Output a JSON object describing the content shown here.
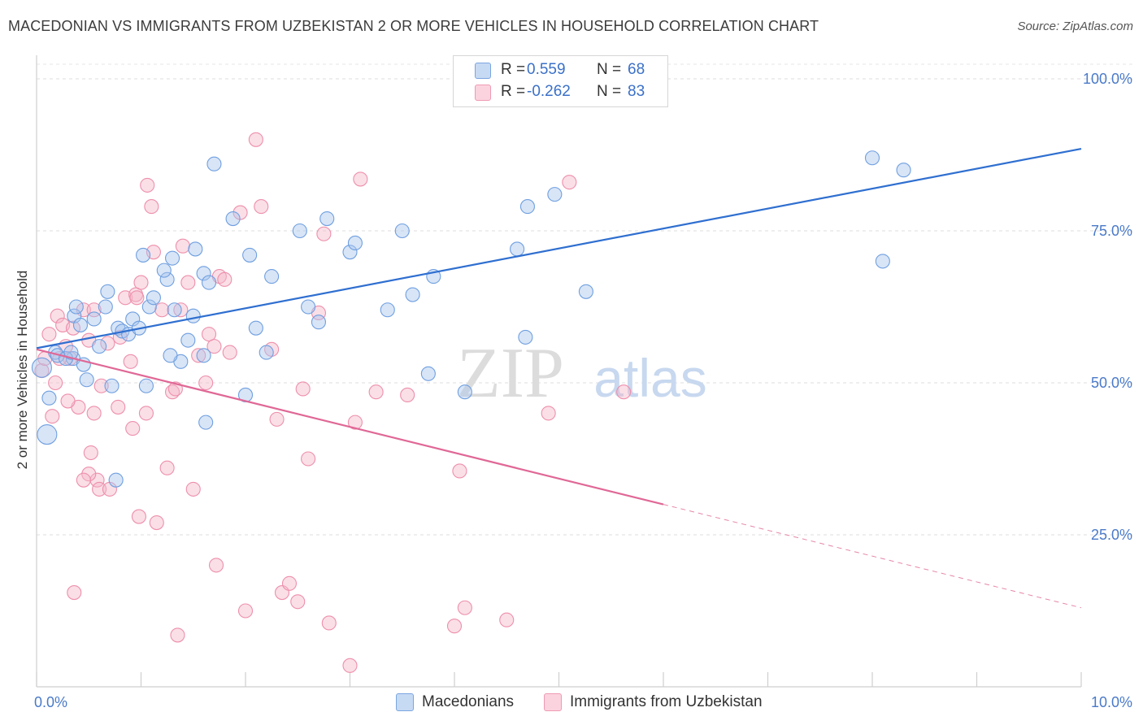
{
  "header": {
    "title": "MACEDONIAN VS IMMIGRANTS FROM UZBEKISTAN 2 OR MORE VEHICLES IN HOUSEHOLD CORRELATION CHART",
    "source": "Source: ZipAtlas.com"
  },
  "watermark": {
    "zip": "ZIP",
    "atlas": "atlas"
  },
  "legend": {
    "rows": [
      {
        "r_label": "R =",
        "r_value": "0.559",
        "n_label": "N =",
        "n_value": "68",
        "color": "#a9c6ee"
      },
      {
        "r_label": "R =",
        "r_value": "-0.262",
        "n_label": "N =",
        "n_value": "83",
        "color": "#f5b8c9"
      }
    ]
  },
  "bottom_legend": {
    "items": [
      {
        "label": "Macedonians",
        "color": "#a9c6ee"
      },
      {
        "label": "Immigrants from Uzbekistan",
        "color": "#f5b8c9"
      }
    ]
  },
  "chart_data": {
    "type": "scatter",
    "title": "MACEDONIAN VS IMMIGRANTS FROM UZBEKISTAN 2 OR MORE VEHICLES IN HOUSEHOLD CORRELATION CHART",
    "xlabel": "",
    "ylabel": "2 or more Vehicles in Household",
    "xlim": [
      0,
      10
    ],
    "ylim": [
      0,
      105
    ],
    "x_tick_labels": [
      {
        "value": 0,
        "label": "0.0%"
      },
      {
        "value": 10,
        "label": "10.0%"
      }
    ],
    "y_tick_labels": [
      {
        "value": 25,
        "label": "25.0%"
      },
      {
        "value": 50,
        "label": "50.0%"
      },
      {
        "value": 75,
        "label": "75.0%"
      },
      {
        "value": 100,
        "label": "100.0%"
      }
    ],
    "grid": true,
    "colors": {
      "macedonians": "#6f9fe0",
      "uzbekistan": "#ee8fab",
      "blue_line": "#2f6fd0",
      "pink_line": "#e06896"
    },
    "series": [
      {
        "name": "Macedonians",
        "color": "#a9c6ee",
        "points": [
          [
            0.05,
            52.5
          ],
          [
            0.1,
            41.5
          ],
          [
            0.12,
            47.5
          ],
          [
            0.18,
            55
          ],
          [
            0.2,
            54.5
          ],
          [
            0.35,
            54
          ],
          [
            0.28,
            54
          ],
          [
            0.33,
            55
          ],
          [
            0.45,
            53
          ],
          [
            0.48,
            50.5
          ],
          [
            0.36,
            61
          ],
          [
            0.42,
            59.5
          ],
          [
            0.38,
            62.5
          ],
          [
            0.55,
            60.5
          ],
          [
            0.6,
            56
          ],
          [
            0.66,
            62.5
          ],
          [
            0.68,
            65
          ],
          [
            0.72,
            49.5
          ],
          [
            0.78,
            59
          ],
          [
            0.82,
            58.5
          ],
          [
            0.88,
            58
          ],
          [
            0.92,
            60.5
          ],
          [
            0.98,
            59
          ],
          [
            0.76,
            34
          ],
          [
            1.05,
            49.5
          ],
          [
            1.08,
            62.5
          ],
          [
            1.12,
            64
          ],
          [
            1.02,
            71
          ],
          [
            1.25,
            67
          ],
          [
            1.22,
            68.5
          ],
          [
            1.3,
            70.5
          ],
          [
            1.32,
            62
          ],
          [
            1.38,
            53.5
          ],
          [
            1.45,
            57
          ],
          [
            1.5,
            61
          ],
          [
            1.52,
            72
          ],
          [
            1.28,
            54.5
          ],
          [
            1.6,
            54.5
          ],
          [
            1.62,
            43.5
          ],
          [
            1.6,
            68
          ],
          [
            1.65,
            66.5
          ],
          [
            1.7,
            86
          ],
          [
            1.88,
            77
          ],
          [
            2.04,
            71
          ],
          [
            2.1,
            59
          ],
          [
            2.2,
            55
          ],
          [
            2.25,
            67.5
          ],
          [
            2.0,
            48
          ],
          [
            2.52,
            75
          ],
          [
            2.6,
            62.5
          ],
          [
            2.7,
            60
          ],
          [
            2.78,
            77
          ],
          [
            3.0,
            71.5
          ],
          [
            3.05,
            73
          ],
          [
            3.36,
            62
          ],
          [
            3.5,
            75
          ],
          [
            3.6,
            64.5
          ],
          [
            3.8,
            67.5
          ],
          [
            3.75,
            51.5
          ],
          [
            4.1,
            48.5
          ],
          [
            4.6,
            72
          ],
          [
            4.68,
            57.5
          ],
          [
            4.7,
            79
          ],
          [
            4.96,
            81
          ],
          [
            5.26,
            65
          ],
          [
            8.0,
            87
          ],
          [
            8.3,
            85
          ],
          [
            8.1,
            70
          ]
        ],
        "trend": {
          "x": [
            0.0,
            10.0
          ],
          "y": [
            55.7,
            88.5
          ],
          "style": "solid"
        }
      },
      {
        "name": "Immigrants from Uzbekistan",
        "color": "#f5b8c9",
        "points": [
          [
            0.05,
            52
          ],
          [
            0.08,
            54
          ],
          [
            0.12,
            58
          ],
          [
            0.15,
            44.5
          ],
          [
            0.2,
            61
          ],
          [
            0.18,
            50
          ],
          [
            0.25,
            59.5
          ],
          [
            0.28,
            56
          ],
          [
            0.32,
            54
          ],
          [
            0.35,
            59
          ],
          [
            0.4,
            46
          ],
          [
            0.45,
            62
          ],
          [
            0.5,
            57
          ],
          [
            0.52,
            38.5
          ],
          [
            0.55,
            45
          ],
          [
            0.58,
            34
          ],
          [
            0.6,
            32.5
          ],
          [
            0.5,
            35
          ],
          [
            0.62,
            49.5
          ],
          [
            0.7,
            32.5
          ],
          [
            0.78,
            46
          ],
          [
            0.8,
            57.5
          ],
          [
            0.85,
            64
          ],
          [
            0.9,
            53.5
          ],
          [
            0.92,
            42.5
          ],
          [
            0.95,
            64.5
          ],
          [
            1.0,
            66.5
          ],
          [
            0.98,
            28
          ],
          [
            1.05,
            45
          ],
          [
            1.1,
            79
          ],
          [
            1.06,
            82.5
          ],
          [
            1.15,
            27
          ],
          [
            1.2,
            62
          ],
          [
            1.25,
            36
          ],
          [
            1.3,
            48.5
          ],
          [
            1.33,
            49
          ],
          [
            1.35,
            8.5
          ],
          [
            1.4,
            72.5
          ],
          [
            1.45,
            66.5
          ],
          [
            1.5,
            32.5
          ],
          [
            1.55,
            54.5
          ],
          [
            1.62,
            50
          ],
          [
            1.65,
            58
          ],
          [
            1.72,
            20
          ],
          [
            1.75,
            67.5
          ],
          [
            1.8,
            67
          ],
          [
            1.85,
            55
          ],
          [
            1.95,
            78
          ],
          [
            2.0,
            12.5
          ],
          [
            2.1,
            90
          ],
          [
            2.15,
            79
          ],
          [
            2.25,
            55.5
          ],
          [
            2.3,
            44
          ],
          [
            2.35,
            15.5
          ],
          [
            2.42,
            17
          ],
          [
            2.5,
            14
          ],
          [
            2.55,
            49
          ],
          [
            2.6,
            37.5
          ],
          [
            2.7,
            61.5
          ],
          [
            2.75,
            74.5
          ],
          [
            2.8,
            10.5
          ],
          [
            3.0,
            3.5
          ],
          [
            3.05,
            43.5
          ],
          [
            3.1,
            83.5
          ],
          [
            3.25,
            48.5
          ],
          [
            3.55,
            48
          ],
          [
            4.0,
            10
          ],
          [
            4.05,
            35.5
          ],
          [
            4.1,
            13
          ],
          [
            4.5,
            11
          ],
          [
            4.9,
            45
          ],
          [
            5.1,
            83
          ],
          [
            5.62,
            48.5
          ],
          [
            0.36,
            15.5
          ],
          [
            0.3,
            47
          ],
          [
            0.55,
            62
          ],
          [
            1.38,
            62
          ],
          [
            0.68,
            56.5
          ],
          [
            1.7,
            56
          ],
          [
            1.12,
            71.5
          ],
          [
            0.22,
            54
          ],
          [
            0.45,
            34
          ],
          [
            0.96,
            64
          ]
        ],
        "trend": {
          "x": [
            0.0,
            6.0
          ],
          "y": [
            55.5,
            30.0
          ],
          "style": "solid",
          "extension": {
            "x": [
              6.0,
              10.0
            ],
            "y": [
              30.0,
              13.0
            ],
            "style": "dashed"
          }
        }
      }
    ]
  }
}
